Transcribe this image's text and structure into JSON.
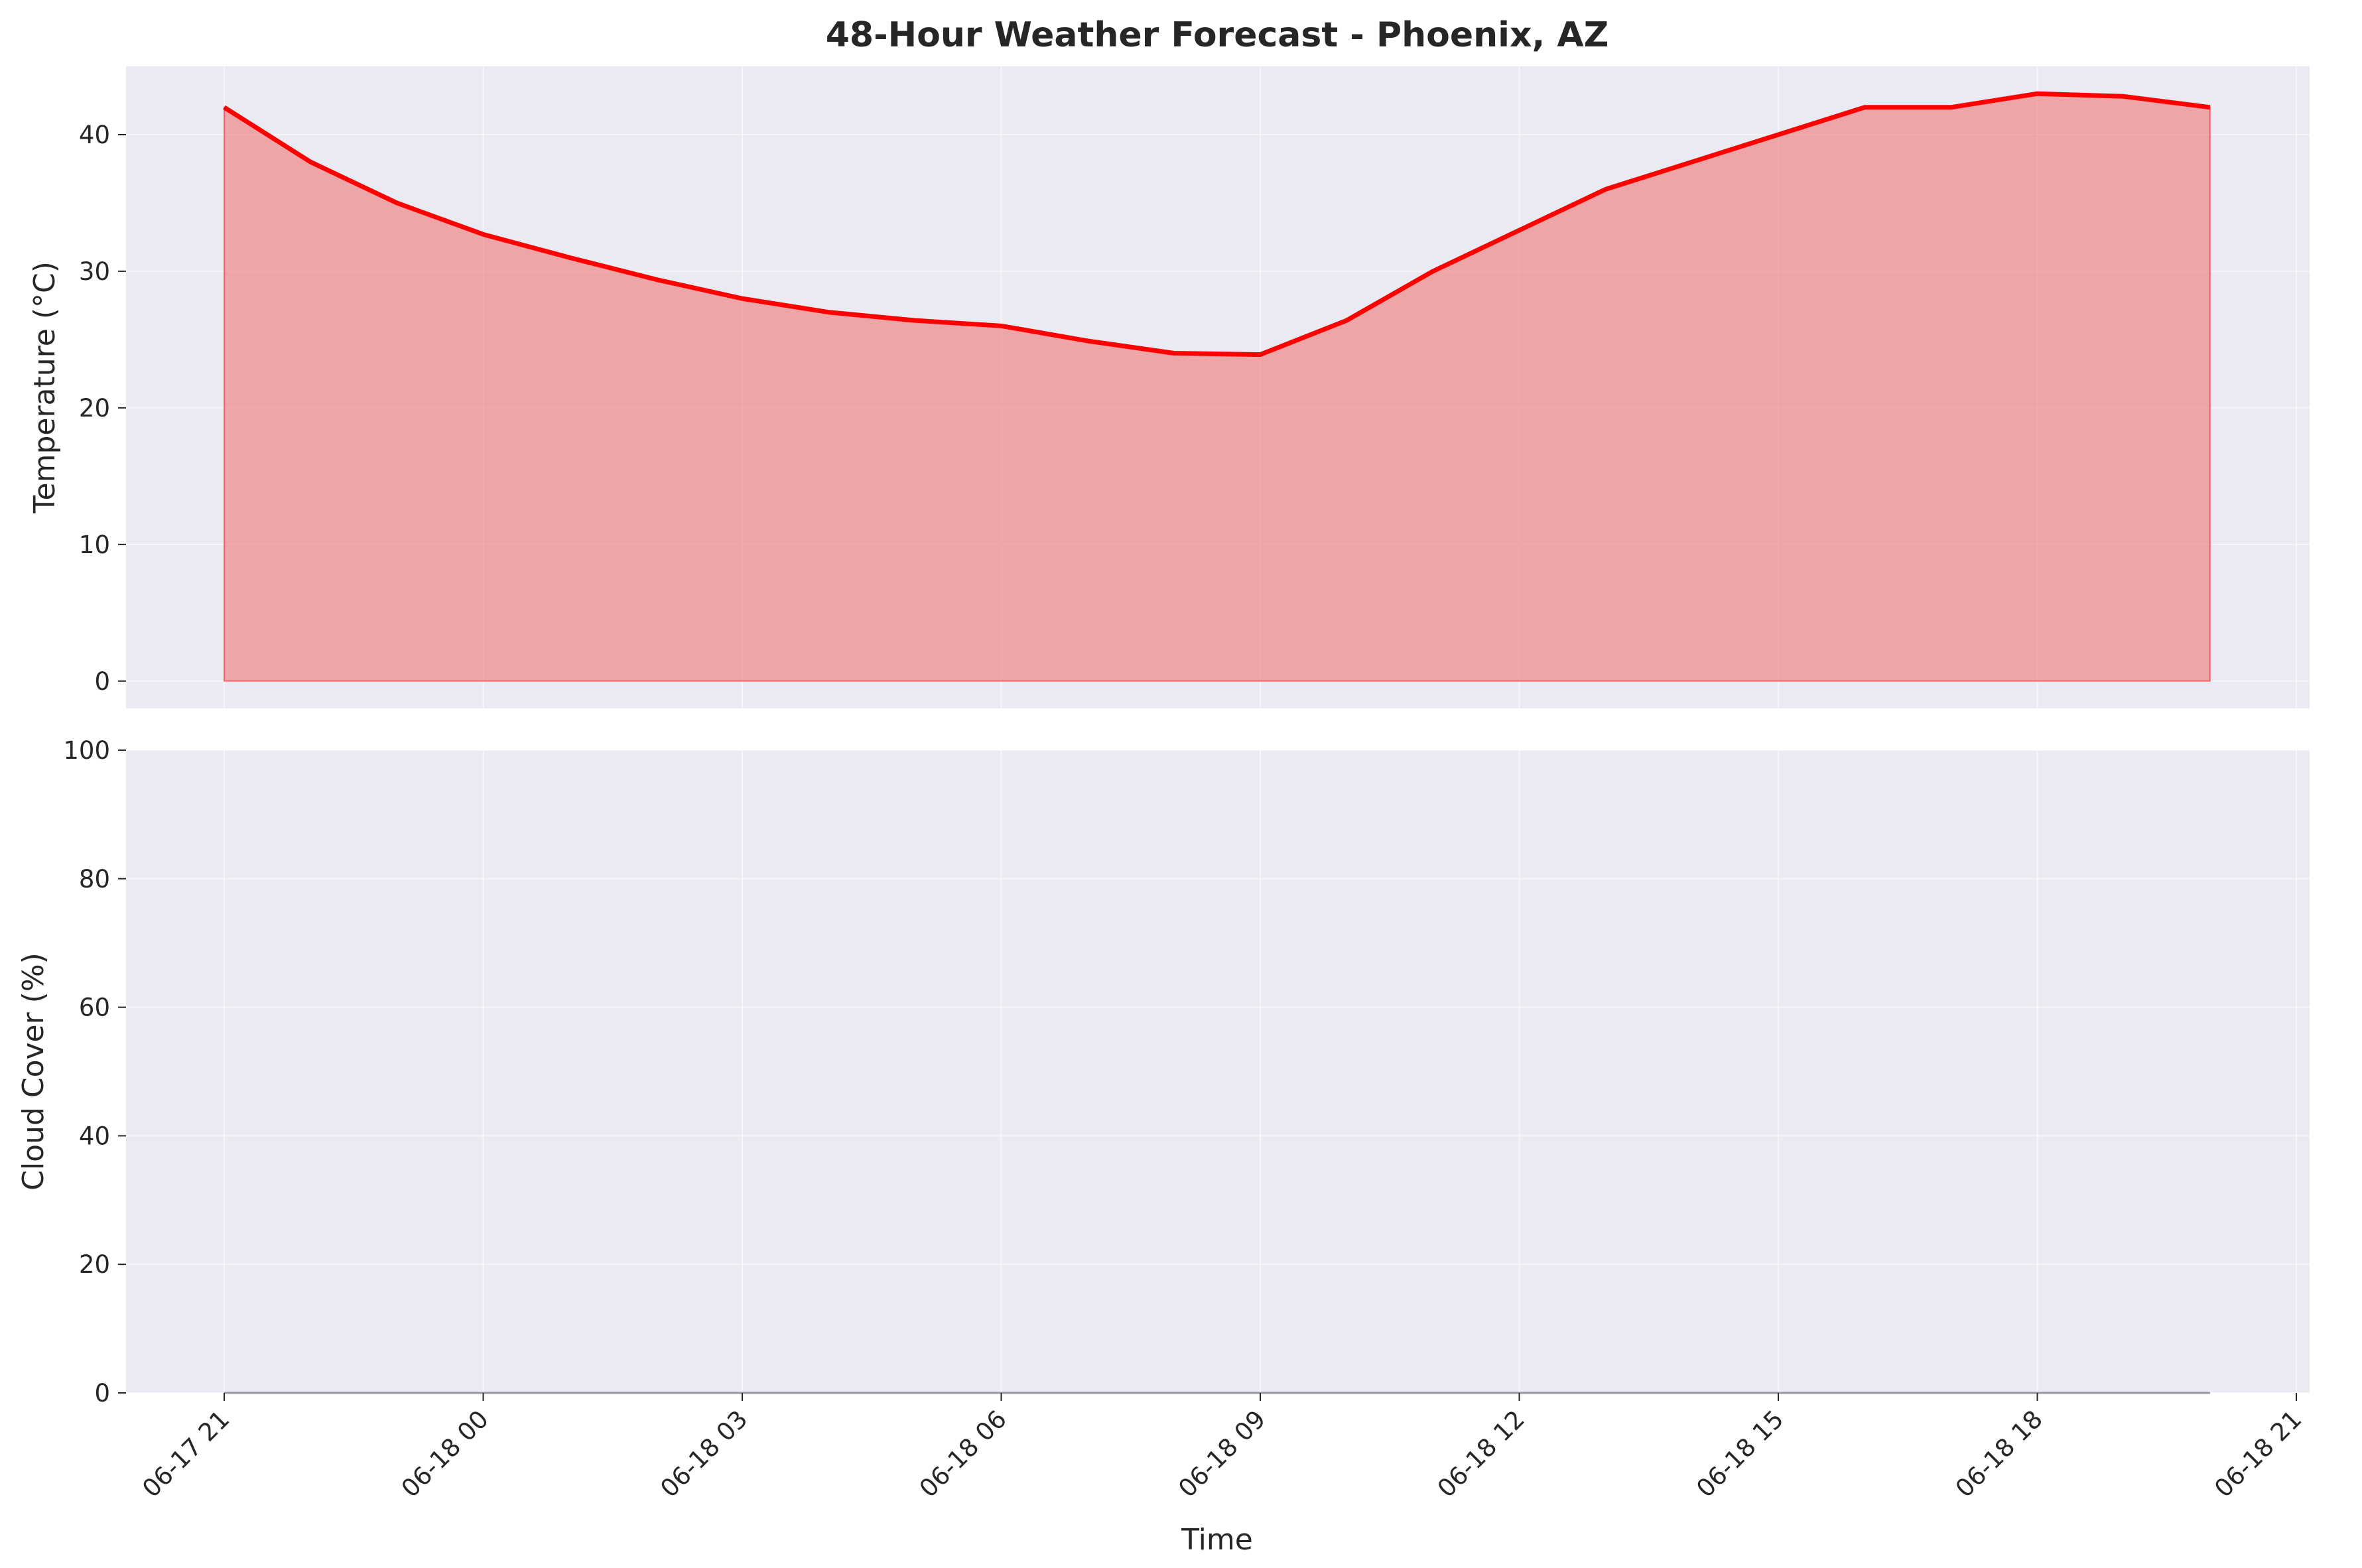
{
  "chart_data": {
    "title": "48-Hour Weather Forecast - Phoenix, AZ",
    "xlabel": "Time",
    "grid": true,
    "x_ticks": [
      "06-17 21",
      "06-18 00",
      "06-18 03",
      "06-18 06",
      "06-18 09",
      "06-18 12",
      "06-18 15",
      "06-18 18",
      "06-18 21"
    ],
    "charts": [
      {
        "type": "area",
        "ylabel": "Temperature (°C)",
        "ylim": [
          -2,
          45
        ],
        "y_ticks": [
          0,
          10,
          20,
          30,
          40
        ],
        "line_color": "#ff0000",
        "fill_color": "#f08080",
        "x": [
          "06-17 21:00",
          "06-17 22:00",
          "06-17 23:00",
          "06-18 00:00",
          "06-18 01:00",
          "06-18 02:00",
          "06-18 03:00",
          "06-18 04:00",
          "06-18 05:00",
          "06-18 06:00",
          "06-18 07:00",
          "06-18 08:00",
          "06-18 09:00",
          "06-18 10:00",
          "06-18 11:00",
          "06-18 12:00",
          "06-18 13:00",
          "06-18 14:00",
          "06-18 15:00",
          "06-18 16:00",
          "06-18 17:00",
          "06-18 18:00",
          "06-18 19:00",
          "06-18 20:00"
        ],
        "values": [
          42,
          38,
          35,
          32.7,
          31,
          29.4,
          28,
          27,
          26.4,
          26,
          24.9,
          24,
          23.9,
          26.4,
          30,
          33,
          36,
          38,
          40,
          42,
          42,
          43,
          42.8,
          42
        ]
      },
      {
        "type": "area",
        "ylabel": "Cloud Cover (%)",
        "ylim": [
          0,
          100
        ],
        "y_ticks": [
          0,
          20,
          40,
          60,
          80,
          100
        ],
        "line_color": "#999999",
        "fill_color": "#999999",
        "x": [
          "06-17 21:00",
          "06-17 22:00",
          "06-17 23:00",
          "06-18 00:00",
          "06-18 01:00",
          "06-18 02:00",
          "06-18 03:00",
          "06-18 04:00",
          "06-18 05:00",
          "06-18 06:00",
          "06-18 07:00",
          "06-18 08:00",
          "06-18 09:00",
          "06-18 10:00",
          "06-18 11:00",
          "06-18 12:00",
          "06-18 13:00",
          "06-18 14:00",
          "06-18 15:00",
          "06-18 16:00",
          "06-18 17:00",
          "06-18 18:00",
          "06-18 19:00",
          "06-18 20:00"
        ],
        "values": [
          0,
          0,
          0,
          0,
          0,
          0,
          0,
          0,
          0,
          0,
          0,
          0,
          0,
          0,
          0,
          0,
          0,
          0,
          0,
          0,
          0,
          0,
          0,
          0
        ]
      }
    ]
  }
}
